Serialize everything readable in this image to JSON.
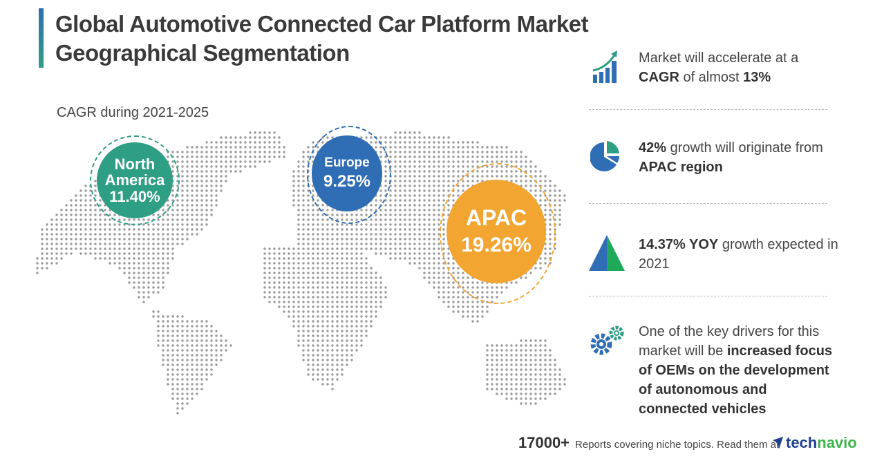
{
  "header": {
    "title_line1": "Global Automotive Connected Car Platform Market",
    "title_line2": "Geographical Segmentation",
    "subtitle": "CAGR during 2021-2025"
  },
  "regions": [
    {
      "name_line1": "North",
      "name_line2": "America",
      "value": "11.40%",
      "color": "#2e9e85"
    },
    {
      "name_line1": "Europe",
      "value": "9.25%",
      "color": "#2f6db5"
    },
    {
      "name_line1": "APAC",
      "value": "19.26%",
      "color": "#f2a531"
    }
  ],
  "highlights": [
    {
      "icon": "growth-chart-icon",
      "parts": [
        "Market will accelerate at a ",
        "CAGR",
        " of almost ",
        "13%"
      ]
    },
    {
      "icon": "pie-chart-icon",
      "parts": [
        "42%",
        " growth will originate from ",
        "APAC region"
      ]
    },
    {
      "icon": "triangle-icon",
      "parts": [
        "14.37% YOY",
        " growth expected in 2021"
      ]
    },
    {
      "icon": "gears-icon",
      "parts": [
        "One of the key drivers for this market will be ",
        "increased focus of OEMs on the development of autonomous and connected vehicles"
      ]
    }
  ],
  "footer": {
    "count": "17000+",
    "text": "Reports covering niche topics. Read them at",
    "logo_part1": "tech",
    "logo_part2": "navio"
  },
  "colors": {
    "teal": "#2e9e85",
    "blue": "#2f6db5",
    "orange": "#f2a531",
    "green": "#1faa59",
    "map_dots": "#9a9a9a"
  }
}
